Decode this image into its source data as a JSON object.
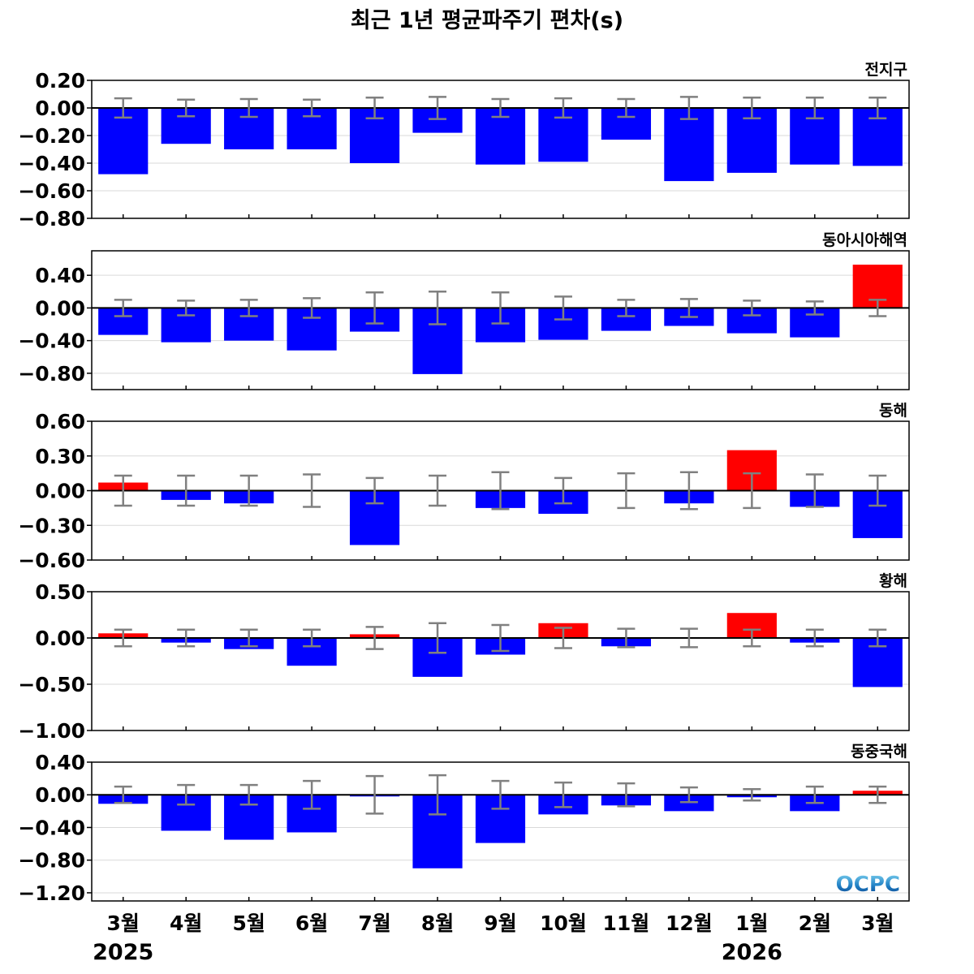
{
  "chart_data": {
    "type": "bar",
    "title": "최근 1년 평균파주기 편차(s)",
    "categories": [
      "3월",
      "4월",
      "5월",
      "6월",
      "7월",
      "8월",
      "9월",
      "10월",
      "11월",
      "12월",
      "1월",
      "2월",
      "3월"
    ],
    "year_labels": [
      {
        "category_index": 0,
        "label": "2025"
      },
      {
        "category_index": 10,
        "label": "2026"
      }
    ],
    "colors": {
      "positive": "#ff0000",
      "negative": "#0000ff",
      "error_bar": "#808080",
      "grid": "#d9d9d9",
      "zero_line": "#000000"
    },
    "grid": true,
    "logo": "OCPC",
    "panels": [
      {
        "name": "전지구",
        "ylim": [
          -0.8,
          0.2
        ],
        "yticks": [
          0.2,
          0.0,
          -0.2,
          -0.4,
          -0.6,
          -0.8
        ],
        "ytick_labels": [
          "0.20",
          "0.00",
          "−0.20",
          "−0.40",
          "−0.60",
          "−0.80"
        ],
        "values": [
          -0.48,
          -0.26,
          -0.3,
          -0.3,
          -0.4,
          -0.18,
          -0.41,
          -0.39,
          -0.23,
          -0.53,
          -0.47,
          -0.41,
          -0.42
        ],
        "errors": [
          0.07,
          0.06,
          0.065,
          0.06,
          0.075,
          0.08,
          0.065,
          0.07,
          0.065,
          0.08,
          0.075,
          0.075,
          0.075
        ]
      },
      {
        "name": "동아시아해역",
        "ylim": [
          -1.0,
          0.7
        ],
        "yticks": [
          0.4,
          0.0,
          -0.4,
          -0.8
        ],
        "ytick_labels": [
          "0.40",
          "0.00",
          "−0.40",
          "−0.80"
        ],
        "values": [
          -0.33,
          -0.42,
          -0.4,
          -0.52,
          -0.29,
          -0.81,
          -0.42,
          -0.39,
          -0.28,
          -0.22,
          -0.31,
          -0.36,
          0.53
        ],
        "errors": [
          0.1,
          0.09,
          0.1,
          0.12,
          0.19,
          0.2,
          0.19,
          0.14,
          0.1,
          0.11,
          0.09,
          0.08,
          0.1
        ]
      },
      {
        "name": "동해",
        "ylim": [
          -0.6,
          0.6
        ],
        "yticks": [
          0.6,
          0.3,
          0.0,
          -0.3,
          -0.6
        ],
        "ytick_labels": [
          "0.60",
          "0.30",
          "0.00",
          "−0.30",
          "−0.60"
        ],
        "values": [
          0.07,
          -0.08,
          -0.11,
          0.0,
          -0.47,
          0.01,
          -0.15,
          -0.2,
          0.0,
          -0.11,
          0.35,
          -0.14,
          -0.41
        ],
        "errors": [
          0.13,
          0.13,
          0.13,
          0.14,
          0.11,
          0.13,
          0.16,
          0.11,
          0.15,
          0.16,
          0.15,
          0.14,
          0.13
        ]
      },
      {
        "name": "황해",
        "ylim": [
          -1.0,
          0.5
        ],
        "yticks": [
          0.5,
          0.0,
          -0.5,
          -1.0
        ],
        "ytick_labels": [
          "0.50",
          "0.00",
          "−0.50",
          "−1.00"
        ],
        "values": [
          0.05,
          -0.05,
          -0.12,
          -0.3,
          0.04,
          -0.42,
          -0.18,
          0.16,
          -0.09,
          0.01,
          0.27,
          -0.05,
          -0.53
        ],
        "errors": [
          0.09,
          0.09,
          0.09,
          0.09,
          0.12,
          0.16,
          0.14,
          0.11,
          0.1,
          0.1,
          0.09,
          0.09,
          0.09
        ]
      },
      {
        "name": "동중국해",
        "ylim": [
          -1.3,
          0.4
        ],
        "yticks": [
          0.4,
          0.0,
          -0.4,
          -0.8,
          -1.2
        ],
        "ytick_labels": [
          "0.40",
          "0.00",
          "−0.40",
          "−0.80",
          "−1.20"
        ],
        "values": [
          -0.11,
          -0.44,
          -0.55,
          -0.46,
          -0.02,
          -0.9,
          -0.59,
          -0.24,
          -0.13,
          -0.2,
          -0.03,
          -0.2,
          0.05
        ],
        "errors": [
          0.1,
          0.12,
          0.12,
          0.17,
          0.23,
          0.24,
          0.17,
          0.15,
          0.14,
          0.09,
          0.07,
          0.1,
          0.1
        ]
      }
    ]
  }
}
